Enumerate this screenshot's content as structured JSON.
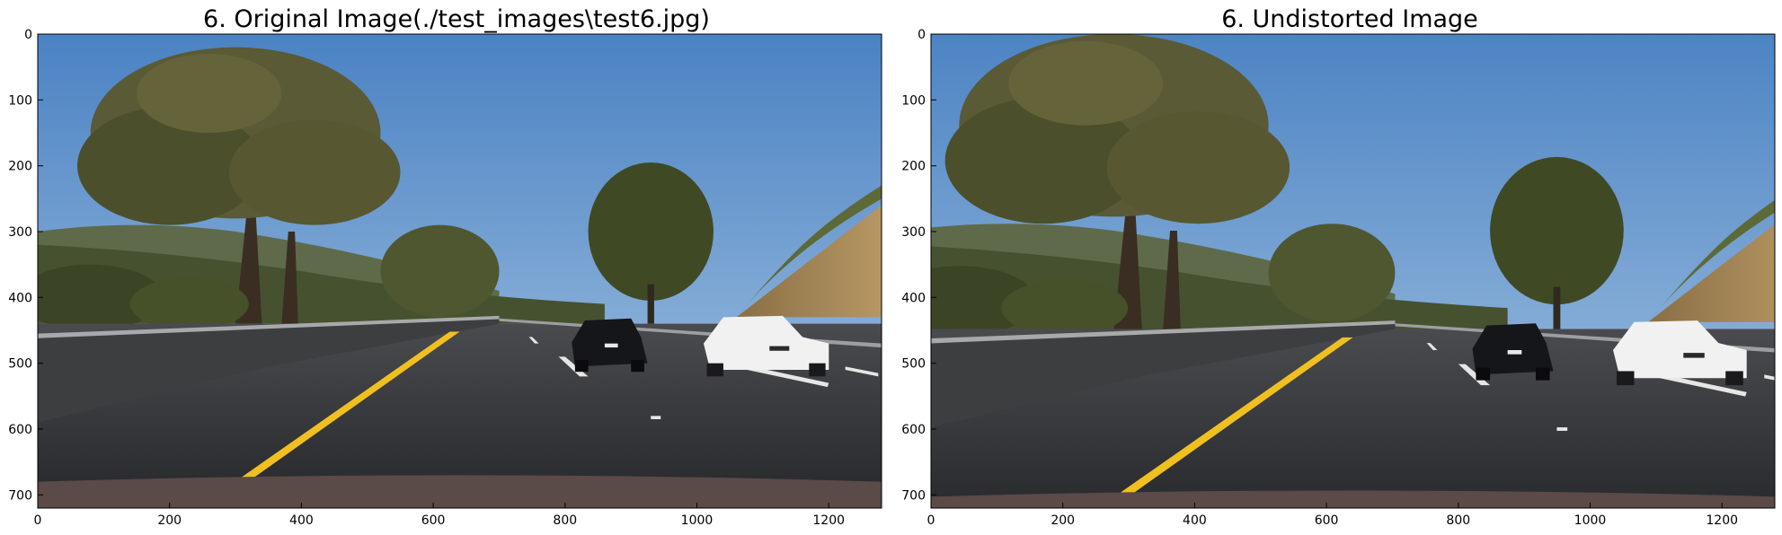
{
  "panels": [
    {
      "title": "6. Original Image(./test_images\\test6.jpg)",
      "image_content": "road scene photo: highway with yellow lane line, black sedan and white sedan, trees under blue sky",
      "x_ticks": [
        "0",
        "200",
        "400",
        "600",
        "800",
        "1000",
        "1200"
      ],
      "y_ticks": [
        "0",
        "100",
        "200",
        "300",
        "400",
        "500",
        "600",
        "700"
      ],
      "xlim": [
        0,
        1280
      ],
      "ylim": [
        720,
        0
      ]
    },
    {
      "title": "6. Undistorted Image",
      "image_content": "road scene photo: highway with yellow lane line, black sedan and white sedan, trees under blue sky",
      "x_ticks": [
        "0",
        "200",
        "400",
        "600",
        "800",
        "1000",
        "1200"
      ],
      "y_ticks": [
        "0",
        "100",
        "200",
        "300",
        "400",
        "500",
        "600",
        "700"
      ],
      "xlim": [
        0,
        1280
      ],
      "ylim": [
        720,
        0
      ]
    }
  ],
  "colors": {
    "sky": "#5b8fc9",
    "yellow_line": "#f0c020",
    "road": "#2f3033",
    "foliage": "#4f5631"
  }
}
